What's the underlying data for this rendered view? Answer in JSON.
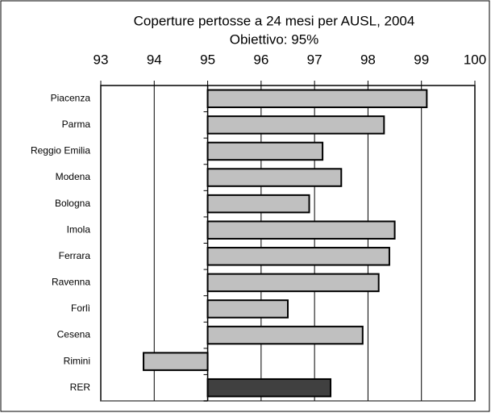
{
  "chart_data": {
    "type": "barh",
    "title": "Coperture pertosse a 24 mesi per AUSL, 2004",
    "subtitle": "Obiettivo: 95%",
    "categories": [
      "Piacenza",
      "Parma",
      "Reggio Emilia",
      "Modena",
      "Bologna",
      "Imola",
      "Ferrara",
      "Ravenna",
      "Forlì",
      "Cesena",
      "Rimini",
      "RER"
    ],
    "values": [
      99.1,
      98.3,
      97.15,
      97.5,
      96.9,
      98.5,
      98.4,
      98.2,
      96.5,
      97.9,
      93.8,
      97.3
    ],
    "colors": [
      "#c0c0c0",
      "#c0c0c0",
      "#c0c0c0",
      "#c0c0c0",
      "#c0c0c0",
      "#c0c0c0",
      "#c0c0c0",
      "#c0c0c0",
      "#c0c0c0",
      "#c0c0c0",
      "#c0c0c0",
      "#404040"
    ],
    "baseline": 95,
    "xlim": [
      93,
      100
    ],
    "xticks": [
      93,
      94,
      95,
      96,
      97,
      98,
      99,
      100
    ],
    "grid": true
  }
}
